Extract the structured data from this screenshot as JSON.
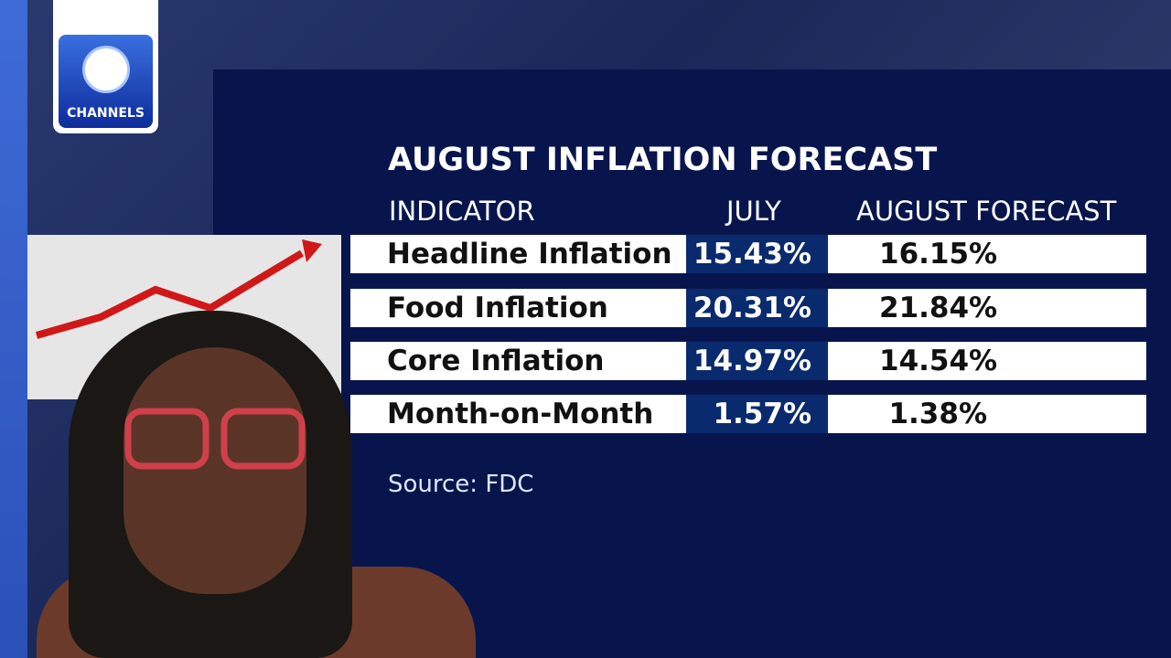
{
  "logo": {
    "text": "CHANNELS"
  },
  "panel": {
    "title": "AUGUST INFLATION FORECAST",
    "table": {
      "header": [
        "INDICATOR",
        "JULY",
        "AUGUST FORECAST"
      ],
      "rows": [
        [
          "Headline Inflation",
          "15.43%",
          "16.15%"
        ],
        [
          "Food Inflation",
          "20.31%",
          "21.84%"
        ],
        [
          "Core Inflation",
          "14.97%",
          "14.54%"
        ],
        [
          "Month-on-Month",
          "1.57%",
          "1.38%"
        ]
      ]
    },
    "source": "Source: FDC"
  }
}
